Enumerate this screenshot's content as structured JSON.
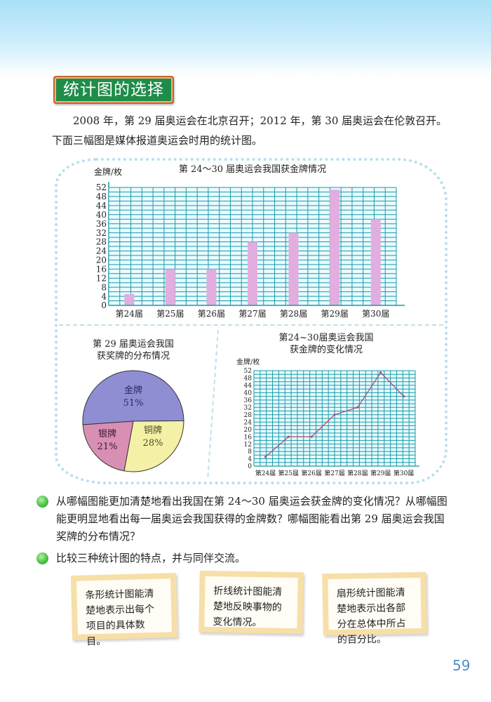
{
  "section_title": "统计图的选择",
  "intro_text": "2008 年，第 29 届奥运会在北京召开；2012 年，第 30 届奥运会在伦敦召开。下面三幅图是媒体报道奥运会时用的统计图。",
  "colors": {
    "title_bg": "#1f8d4a",
    "title_border": "#c8632b",
    "grid": "#1a9aa8",
    "grid_fill": "#e9fbff",
    "bar": "#e2aee0",
    "line": "#b04a78",
    "pie_gold": "#8f8ed3",
    "pie_silver": "#d98fb4",
    "pie_bronze": "#f4f1a6",
    "page_number": "#4d8fc7"
  },
  "chart_data": [
    {
      "type": "bar",
      "title": "第 24～30 届奥运会我国获金牌情况",
      "ylabel": "金牌/枚",
      "xlabel": "",
      "categories": [
        "第24届",
        "第25届",
        "第26届",
        "第27届",
        "第28届",
        "第29届",
        "第30届"
      ],
      "values": [
        5,
        16,
        16,
        28,
        32,
        51,
        38
      ],
      "yticks": [
        0,
        4,
        8,
        12,
        16,
        20,
        24,
        28,
        32,
        36,
        40,
        44,
        48,
        52
      ],
      "ylim": [
        0,
        52
      ],
      "grid": true
    },
    {
      "type": "pie",
      "title": "第 29 届奥运会我国获奖牌的分布情况",
      "labels": [
        "金牌",
        "银牌",
        "铜牌"
      ],
      "values": [
        51,
        21,
        28
      ],
      "value_labels": [
        "51%",
        "21%",
        "28%"
      ]
    },
    {
      "type": "line",
      "title": "第24~30届奥运会我国获金牌的变化情况",
      "ylabel": "金牌/枚",
      "categories": [
        "第24届",
        "第25届",
        "第26届",
        "第27届",
        "第28届",
        "第29届",
        "第30届"
      ],
      "values": [
        5,
        16,
        16,
        28,
        32,
        51,
        38
      ],
      "yticks": [
        0,
        4,
        8,
        12,
        16,
        20,
        24,
        28,
        32,
        36,
        40,
        44,
        48,
        52
      ],
      "ylim": [
        0,
        52
      ],
      "grid": true
    }
  ],
  "bar_chart": {
    "title": "第 24～30 届奥运会我国获金牌情况",
    "ylabel": "金牌/枚"
  },
  "pie_chart": {
    "title_line1": "第 29 届奥运会我国",
    "title_line2": "获奖牌的分布情况",
    "gold_label": "金牌",
    "gold_pct": "51%",
    "silver_label": "银牌",
    "silver_pct": "21%",
    "bronze_label": "铜牌",
    "bronze_pct": "28%"
  },
  "line_chart": {
    "title_line1": "第24~30届奥运会我国",
    "title_line2": "获金牌的变化情况",
    "ylabel": "金牌/枚"
  },
  "questions": [
    "从哪幅图能更加清楚地看出我国在第 24～30 届奥运会获金牌的变化情况？从哪幅图能更明显地看出每一届奥运会我国获得的金牌数？哪幅图能看出第 29 届奥运会我国奖牌的分布情况？",
    "比较三种统计图的特点，并与同伴交流。"
  ],
  "notes": [
    "条形统计图能清楚地表示出每个项目的具体数目。",
    "折线统计图能清楚地反映事物的变化情况。",
    "扇形统计图能清楚地表示出各部分在总体中所占的百分比。"
  ],
  "page_number": "59"
}
